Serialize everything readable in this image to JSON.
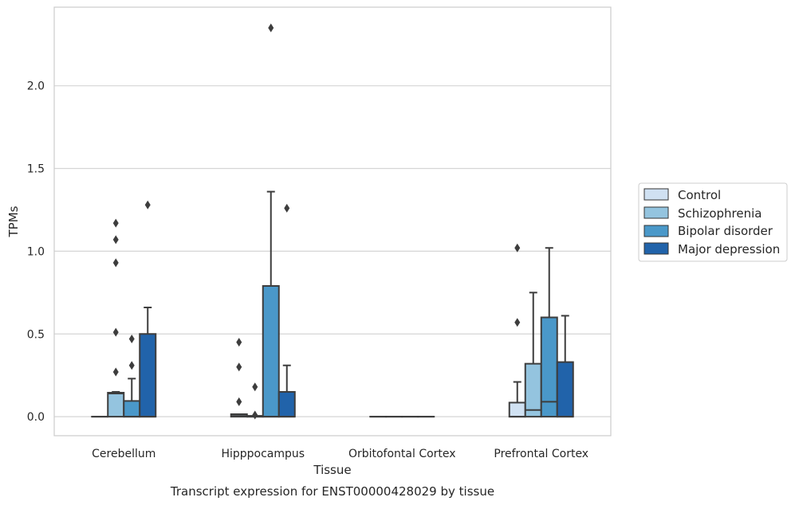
{
  "chart_data": {
    "type": "box",
    "xlabel": "Tissue",
    "ylabel": "TPMs",
    "caption": "Transcript expression for ENST00000428029 by tissue",
    "ylim": [
      -0.115,
      2.475
    ],
    "yticks": [
      0.0,
      0.5,
      1.0,
      1.5,
      2.0
    ],
    "ytick_labels": [
      "0.0",
      "0.5",
      "1.0",
      "1.5",
      "2.0"
    ],
    "grid": "horizontal",
    "legend_position": "right",
    "categories": [
      "Cerebellum",
      "Hipppocampus",
      "Orbitofontal Cortex",
      "Prefrontal Cortex"
    ],
    "series": [
      {
        "name": "Control",
        "color": "#d0e1f2",
        "boxes": [
          {
            "q1": 0.0,
            "median": 0.0,
            "q3": 0.0,
            "whisker_low": 0.0,
            "whisker_high": 0.0,
            "outliers": []
          },
          {
            "q1": 0.0,
            "median": 0.005,
            "q3": 0.015,
            "whisker_low": 0.0,
            "whisker_high": 0.015,
            "outliers": [
              0.09,
              0.3,
              0.45
            ]
          },
          {
            "q1": 0.0,
            "median": 0.0,
            "q3": 0.0,
            "whisker_low": 0.0,
            "whisker_high": 0.0,
            "outliers": []
          },
          {
            "q1": 0.0,
            "median": 0.0,
            "q3": 0.085,
            "whisker_low": 0.0,
            "whisker_high": 0.21,
            "outliers": [
              0.57,
              1.02
            ]
          }
        ]
      },
      {
        "name": "Schizophrenia",
        "color": "#94c4df",
        "boxes": [
          {
            "q1": 0.0,
            "median": 0.14,
            "q3": 0.145,
            "whisker_low": 0.0,
            "whisker_high": 0.15,
            "outliers": [
              0.27,
              0.51,
              0.93,
              1.07,
              1.17
            ]
          },
          {
            "q1": 0.0,
            "median": 0.0,
            "q3": 0.005,
            "whisker_low": 0.0,
            "whisker_high": 0.005,
            "outliers": [
              0.18,
              0.01
            ]
          },
          {
            "q1": 0.0,
            "median": 0.0,
            "q3": 0.0,
            "whisker_low": 0.0,
            "whisker_high": 0.0,
            "outliers": []
          },
          {
            "q1": 0.0,
            "median": 0.04,
            "q3": 0.32,
            "whisker_low": 0.0,
            "whisker_high": 0.75,
            "outliers": []
          }
        ]
      },
      {
        "name": "Bipolar disorder",
        "color": "#4a98c9",
        "boxes": [
          {
            "q1": 0.0,
            "median": 0.0,
            "q3": 0.095,
            "whisker_low": 0.0,
            "whisker_high": 0.23,
            "outliers": [
              0.31,
              0.47
            ]
          },
          {
            "q1": 0.0,
            "median": 0.0,
            "q3": 0.79,
            "whisker_low": 0.0,
            "whisker_high": 1.36,
            "outliers": [
              2.35
            ]
          },
          {
            "q1": 0.0,
            "median": 0.0,
            "q3": 0.0,
            "whisker_low": 0.0,
            "whisker_high": 0.0,
            "outliers": []
          },
          {
            "q1": 0.0,
            "median": 0.09,
            "q3": 0.6,
            "whisker_low": 0.0,
            "whisker_high": 1.02,
            "outliers": []
          }
        ]
      },
      {
        "name": "Major depression",
        "color": "#2163aa",
        "boxes": [
          {
            "q1": 0.0,
            "median": 0.0,
            "q3": 0.5,
            "whisker_low": 0.0,
            "whisker_high": 0.66,
            "outliers": [
              1.28
            ]
          },
          {
            "q1": 0.0,
            "median": 0.0,
            "q3": 0.15,
            "whisker_low": 0.0,
            "whisker_high": 0.31,
            "outliers": [
              1.26
            ]
          },
          {
            "q1": 0.0,
            "median": 0.0,
            "q3": 0.0,
            "whisker_low": 0.0,
            "whisker_high": 0.0,
            "outliers": []
          },
          {
            "q1": 0.0,
            "median": 0.0,
            "q3": 0.33,
            "whisker_low": 0.0,
            "whisker_high": 0.61,
            "outliers": []
          }
        ]
      }
    ]
  }
}
